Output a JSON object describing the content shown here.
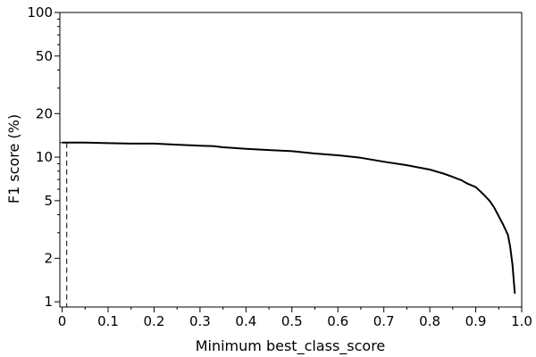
{
  "chart_data": {
    "type": "line",
    "xlabel": "Minimum best_class_score",
    "ylabel": "F1 score (%)",
    "xlim": [
      -0.005,
      1.0
    ],
    "ylim": [
      0.92,
      100
    ],
    "y_scale": "log",
    "grid": false,
    "x_ticks": [
      0,
      0.1,
      0.2,
      0.3,
      0.4,
      0.5,
      0.6,
      0.7,
      0.8,
      0.9,
      1.0
    ],
    "x_tick_labels": [
      "0",
      "0.1",
      "0.2",
      "0.3",
      "0.4",
      "0.5",
      "0.6",
      "0.7",
      "0.8",
      "0.9",
      "1.0"
    ],
    "y_ticks": [
      1,
      2,
      5,
      10,
      20,
      50,
      100
    ],
    "y_tick_labels": [
      "1",
      "2",
      "5",
      "10",
      "20",
      "50",
      "100"
    ],
    "reference_lines": {
      "horizontal_y": 12.6,
      "vertical_x": 0.01
    },
    "series": [
      {
        "x": [
          0.0,
          0.05,
          0.1,
          0.15,
          0.2,
          0.25,
          0.3,
          0.33,
          0.35,
          0.4,
          0.45,
          0.5,
          0.55,
          0.6,
          0.65,
          0.7,
          0.75,
          0.8,
          0.83,
          0.85,
          0.87,
          0.88,
          0.9,
          0.91,
          0.92,
          0.93,
          0.94,
          0.95,
          0.96,
          0.97,
          0.975,
          0.98,
          0.985
        ],
        "y": [
          12.6,
          12.6,
          12.5,
          12.4,
          12.4,
          12.2,
          12.0,
          11.9,
          11.7,
          11.4,
          11.2,
          11.0,
          10.6,
          10.3,
          9.9,
          9.3,
          8.8,
          8.2,
          7.7,
          7.3,
          6.9,
          6.6,
          6.2,
          5.8,
          5.4,
          5.0,
          4.5,
          3.9,
          3.4,
          2.9,
          2.4,
          1.8,
          1.14
        ]
      }
    ]
  }
}
